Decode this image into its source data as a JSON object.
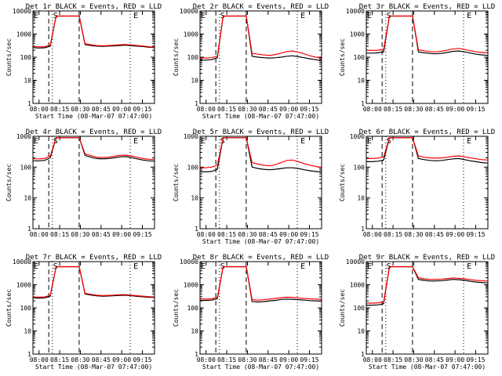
{
  "chart_data": [
    {
      "type": "line",
      "title": "Det 1r BLACK = Events, RED = LLD",
      "xlabel": "Start Time (08-Mar-07 07:47:00)",
      "ylabel": "Counts/sec",
      "y_scale": "log",
      "ylim": [
        1,
        10000
      ],
      "x_tick_labels": [
        "08:00",
        "08:15",
        "08:30",
        "08:45",
        "09:00",
        "09:15"
      ],
      "y_tick_labels": [
        "1",
        "10",
        "100",
        "1000",
        "10000"
      ],
      "markers": [
        {
          "label": "E"
        },
        {
          "label": "S"
        },
        {
          "label": "E"
        }
      ],
      "series": [
        {
          "color": "#000000",
          "values": [
            260,
            250,
            255,
            300,
            6000,
            6000,
            6000,
            6000,
            6000,
            350,
            320,
            300,
            295,
            300,
            310,
            320,
            330,
            315,
            300,
            290,
            270,
            260
          ]
        },
        {
          "color": "#ff0000",
          "values": [
            290,
            280,
            285,
            330,
            6000,
            6000,
            6000,
            6000,
            6000,
            380,
            345,
            320,
            310,
            320,
            330,
            345,
            355,
            340,
            320,
            305,
            285,
            270
          ]
        }
      ]
    },
    {
      "type": "line",
      "title": "Det 2r BLACK = Events, RED = LLD",
      "xlabel": "Start Time (08-Mar-07 07:47:00)",
      "ylabel": "Counts/sec",
      "y_scale": "log",
      "ylim": [
        1,
        10000
      ],
      "x_tick_labels": [
        "08:00",
        "08:15",
        "08:30",
        "08:45",
        "09:00",
        "09:15"
      ],
      "y_tick_labels": [
        "1",
        "10",
        "100",
        "1000",
        "10000"
      ],
      "markers": [
        {
          "label": "E"
        },
        {
          "label": "S"
        },
        {
          "label": "E"
        }
      ],
      "series": [
        {
          "color": "#000000",
          "values": [
            75,
            75,
            78,
            95,
            6000,
            6000,
            6000,
            6000,
            6000,
            110,
            100,
            95,
            92,
            95,
            100,
            110,
            115,
            105,
            95,
            85,
            78,
            70
          ]
        },
        {
          "color": "#ff0000",
          "values": [
            95,
            92,
            95,
            110,
            6000,
            6000,
            6000,
            6000,
            6000,
            145,
            135,
            125,
            120,
            130,
            150,
            175,
            185,
            165,
            140,
            115,
            100,
            90
          ]
        }
      ]
    },
    {
      "type": "line",
      "title": "Det 3r BLACK = Events, RED = LLD",
      "xlabel": "",
      "ylabel": "Counts/sec",
      "y_scale": "log",
      "ylim": [
        1,
        10000
      ],
      "x_tick_labels": [
        "08:00",
        "08:15",
        "08:30",
        "08:45",
        "09:00",
        "09:15"
      ],
      "y_tick_labels": [
        "1",
        "10",
        "100",
        "1000",
        "10000"
      ],
      "markers": [
        {
          "label": "E"
        },
        {
          "label": "S"
        },
        {
          "label": "E"
        }
      ],
      "series": [
        {
          "color": "#000000",
          "values": [
            150,
            150,
            155,
            170,
            6000,
            6000,
            6000,
            6000,
            6000,
            170,
            155,
            145,
            140,
            145,
            160,
            180,
            185,
            170,
            150,
            135,
            125,
            120
          ]
        },
        {
          "color": "#ff0000",
          "values": [
            200,
            195,
            200,
            220,
            6000,
            6000,
            6000,
            6000,
            6000,
            210,
            190,
            175,
            170,
            180,
            200,
            230,
            240,
            215,
            190,
            170,
            160,
            155
          ]
        }
      ]
    },
    {
      "type": "line",
      "title": "Det 4r BLACK = Events, RED = LLD",
      "xlabel": "",
      "ylabel": "Counts/sec",
      "y_scale": "log",
      "ylim": [
        1,
        1000
      ],
      "x_tick_labels": [
        "08:00",
        "08:15",
        "08:30",
        "08:45",
        "09:00",
        "09:15"
      ],
      "y_tick_labels": [
        "1",
        "10",
        "100",
        "1000"
      ],
      "markers": [
        {
          "label": "E"
        },
        {
          "label": "S"
        },
        {
          "label": "E"
        }
      ],
      "series": [
        {
          "color": "#000000",
          "values": [
            160,
            160,
            165,
            200,
            900,
            900,
            900,
            900,
            900,
            240,
            210,
            190,
            185,
            190,
            200,
            215,
            220,
            205,
            185,
            170,
            160,
            155
          ]
        },
        {
          "color": "#ff0000",
          "values": [
            185,
            185,
            190,
            230,
            900,
            900,
            900,
            900,
            900,
            270,
            235,
            210,
            205,
            210,
            225,
            240,
            245,
            230,
            210,
            190,
            180,
            175
          ]
        }
      ]
    },
    {
      "type": "line",
      "title": "Det 5r BLACK = Events, RED = LLD",
      "xlabel": "Start Time (08-Mar-07 07:47:00)",
      "ylabel": "Counts/sec",
      "y_scale": "log",
      "ylim": [
        1,
        1000
      ],
      "x_tick_labels": [
        "08:00",
        "08:15",
        "08:30",
        "08:45",
        "09:00",
        "09:15"
      ],
      "y_tick_labels": [
        "1",
        "10",
        "100",
        "1000"
      ],
      "markers": [
        {
          "label": "E"
        },
        {
          "label": "S"
        },
        {
          "label": "E"
        }
      ],
      "series": [
        {
          "color": "#000000",
          "values": [
            70,
            70,
            72,
            85,
            900,
            900,
            900,
            900,
            900,
            100,
            90,
            85,
            82,
            85,
            90,
            95,
            95,
            90,
            82,
            76,
            72,
            68
          ]
        },
        {
          "color": "#ff0000",
          "values": [
            95,
            95,
            100,
            115,
            900,
            900,
            900,
            900,
            900,
            140,
            125,
            115,
            110,
            120,
            140,
            165,
            170,
            150,
            130,
            115,
            105,
            98
          ]
        }
      ]
    },
    {
      "type": "line",
      "title": "Det 6r BLACK = Events, RED = LLD",
      "xlabel": "",
      "ylabel": "Counts/sec",
      "y_scale": "log",
      "ylim": [
        1,
        1000
      ],
      "x_tick_labels": [
        "08:00",
        "08:15",
        "08:30",
        "08:45",
        "09:00",
        "09:15"
      ],
      "y_tick_labels": [
        "1",
        "10",
        "100",
        "1000"
      ],
      "markers": [
        {
          "label": "E"
        },
        {
          "label": "S"
        },
        {
          "label": "E"
        }
      ],
      "series": [
        {
          "color": "#000000",
          "values": [
            150,
            150,
            155,
            170,
            900,
            900,
            900,
            900,
            900,
            190,
            175,
            165,
            160,
            165,
            175,
            185,
            190,
            175,
            160,
            150,
            140,
            135
          ]
        },
        {
          "color": "#ff0000",
          "values": [
            190,
            190,
            195,
            215,
            900,
            900,
            900,
            900,
            900,
            230,
            210,
            200,
            195,
            200,
            210,
            225,
            230,
            215,
            200,
            185,
            175,
            170
          ]
        }
      ]
    },
    {
      "type": "line",
      "title": "Det 7r BLACK = Events, RED = LLD",
      "xlabel": "Start Time (08-Mar-07 07:47:00)",
      "ylabel": "Counts/sec",
      "y_scale": "log",
      "ylim": [
        1,
        10000
      ],
      "x_tick_labels": [
        "08:00",
        "08:15",
        "08:30",
        "08:45",
        "09:00",
        "09:15"
      ],
      "y_tick_labels": [
        "1",
        "10",
        "100",
        "1000",
        "10000"
      ],
      "markers": [
        {
          "label": "E"
        },
        {
          "label": "S"
        },
        {
          "label": "E"
        }
      ],
      "series": [
        {
          "color": "#000000",
          "values": [
            270,
            265,
            270,
            320,
            6000,
            6000,
            6000,
            6000,
            6000,
            400,
            360,
            330,
            320,
            325,
            335,
            345,
            350,
            335,
            315,
            300,
            290,
            280
          ]
        },
        {
          "color": "#ff0000",
          "values": [
            295,
            290,
            295,
            345,
            6000,
            6000,
            6000,
            6000,
            6000,
            430,
            385,
            350,
            340,
            345,
            355,
            370,
            375,
            355,
            335,
            320,
            305,
            295
          ]
        }
      ]
    },
    {
      "type": "line",
      "title": "Det 8r BLACK = Events, RED = LLD",
      "xlabel": "Start Time (08-Mar-07 07:47:00)",
      "ylabel": "Counts/sec",
      "y_scale": "log",
      "ylim": [
        1,
        10000
      ],
      "x_tick_labels": [
        "08:00",
        "08:15",
        "08:30",
        "08:45",
        "09:00",
        "09:15"
      ],
      "y_tick_labels": [
        "1",
        "10",
        "100",
        "1000",
        "10000"
      ],
      "markers": [
        {
          "label": "E"
        },
        {
          "label": "S"
        },
        {
          "label": "E"
        }
      ],
      "series": [
        {
          "color": "#000000",
          "values": [
            210,
            210,
            215,
            250,
            6000,
            6000,
            6000,
            6000,
            6000,
            190,
            180,
            185,
            200,
            210,
            230,
            240,
            235,
            225,
            215,
            205,
            200,
            195
          ]
        },
        {
          "color": "#ff0000",
          "values": [
            245,
            240,
            245,
            285,
            6000,
            6000,
            6000,
            6000,
            6000,
            230,
            215,
            225,
            240,
            255,
            275,
            290,
            285,
            270,
            255,
            245,
            240,
            235
          ]
        }
      ]
    },
    {
      "type": "line",
      "title": "Det 9r BLACK = Events, RED = LLD",
      "xlabel": "Start Time (08-Mar-07 07:47:00)",
      "ylabel": "Counts/sec",
      "y_scale": "log",
      "ylim": [
        1,
        10000
      ],
      "x_tick_labels": [
        "08:00",
        "08:15",
        "08:30",
        "08:45",
        "09:00",
        "09:15"
      ],
      "y_tick_labels": [
        "1",
        "10",
        "100",
        "1000",
        "10000"
      ],
      "markers": [
        {
          "label": "E"
        },
        {
          "label": "S"
        },
        {
          "label": "E"
        }
      ],
      "series": [
        {
          "color": "#000000",
          "values": [
            130,
            130,
            135,
            150,
            6000,
            6000,
            6000,
            6000,
            6000,
            1700,
            1550,
            1450,
            1450,
            1500,
            1600,
            1700,
            1650,
            1550,
            1400,
            1300,
            1250,
            1200
          ]
        },
        {
          "color": "#ff0000",
          "values": [
            160,
            160,
            165,
            180,
            6000,
            6000,
            6000,
            6000,
            6000,
            2000,
            1800,
            1700,
            1700,
            1750,
            1850,
            1950,
            1900,
            1800,
            1650,
            1550,
            1500,
            1450
          ]
        }
      ]
    }
  ]
}
